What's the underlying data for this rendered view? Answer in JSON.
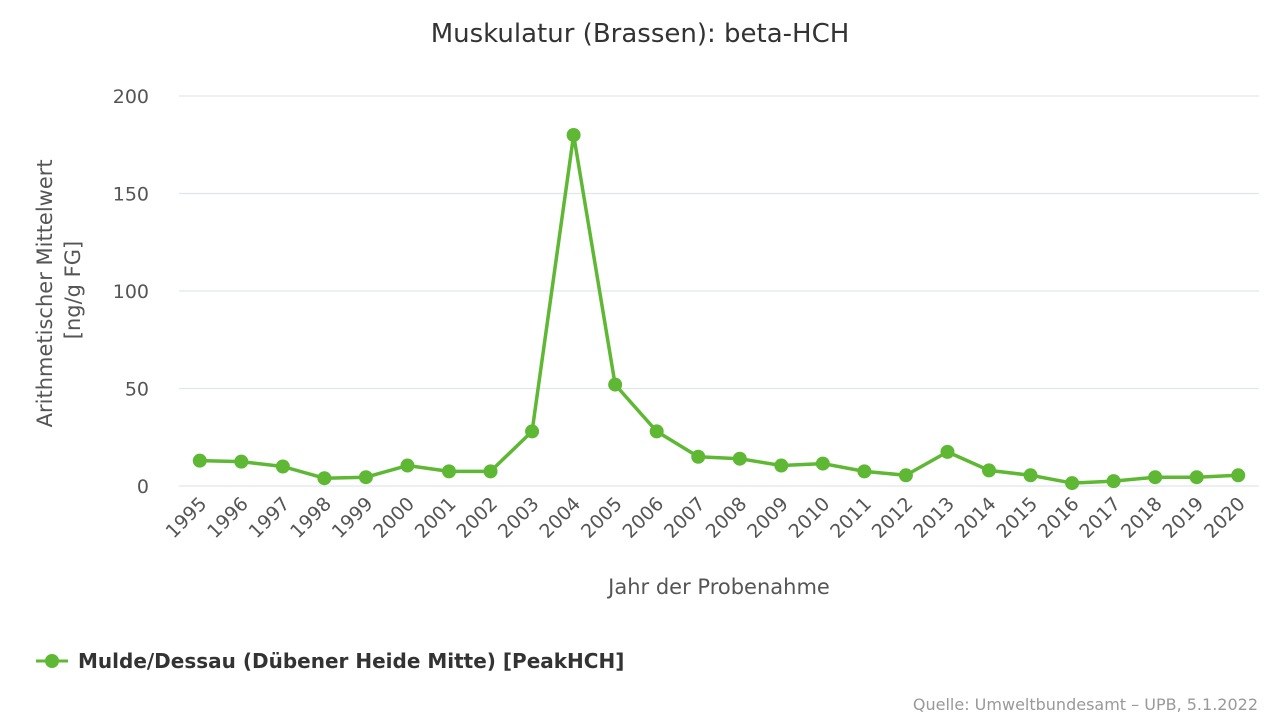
{
  "chart_data": {
    "type": "line",
    "title": "Muskulatur (Brassen): beta-HCH",
    "xlabel": "Jahr der Probenahme",
    "ylabel_lines": [
      "Arithmetischer Mittelwert",
      "[ng/g FG]"
    ],
    "ylim": [
      0,
      200
    ],
    "yticks": [
      0,
      50,
      100,
      150,
      200
    ],
    "grid": true,
    "legend_position": "bottom-left",
    "categories": [
      "1995",
      "1996",
      "1997",
      "1998",
      "1999",
      "2000",
      "2001",
      "2002",
      "2003",
      "2004",
      "2005",
      "2006",
      "2007",
      "2008",
      "2009",
      "2010",
      "2011",
      "2012",
      "2013",
      "2014",
      "2015",
      "2016",
      "2017",
      "2018",
      "2019",
      "2020"
    ],
    "series": [
      {
        "name": "Mulde/Dessau (Dübener Heide Mitte) [PeakHCH]",
        "color": "#5eb833",
        "values": [
          13,
          12.5,
          10,
          4,
          4.5,
          10.5,
          7.5,
          7.5,
          28,
          180,
          52,
          28,
          15,
          14,
          10.5,
          11.5,
          7.5,
          5.5,
          17.5,
          8,
          5.5,
          1.5,
          2.5,
          4.5,
          4.5,
          5.5
        ]
      }
    ],
    "credits": "Quelle: Umweltbundesamt – UPB, 5.1.2022"
  }
}
